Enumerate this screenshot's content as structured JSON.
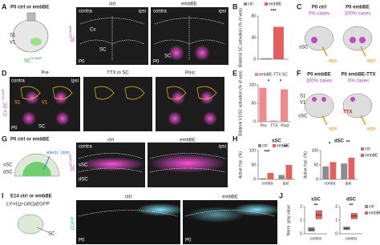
{
  "panels": {
    "a": {
      "letter": "A",
      "title": "P0 ctrl or embBE",
      "s1": "S1",
      "v1": "V1",
      "sc": "SC",
      "sc_sup": "GCaMP"
    },
    "a_img": {
      "side": "SC",
      "side_sup": "GCaMP",
      "ctrl": "ctrl",
      "embbe": "embBE",
      "contra": "contra",
      "ipsi": "ipsi",
      "contra2": "contra",
      "ipsi2": "ipsi",
      "cx": "Cx",
      "sc": "SC",
      "sc2": "SC",
      "p0": "P0",
      "p0_2": "P0"
    },
    "b": {
      "letter": "B"
    },
    "c": {
      "letter": "C",
      "left_title": "P0 ctrl",
      "left_cases": "0% cases",
      "right_title": "P0 embBE",
      "right_cases": "100% cases",
      "ssc": "sSC",
      "wps_left": "wps",
      "wps_right": "wps"
    },
    "d": {
      "letter": "D",
      "side": "Cx-SC",
      "side_sup": "GCaMP",
      "pre": "Pre",
      "ttx": "TTX in SC",
      "post": "Post",
      "contra": "contra",
      "ipsi": "ipsi",
      "s1": "S1",
      "v1": "V1",
      "sc": "SC",
      "p0": "P0"
    },
    "e": {
      "letter": "E"
    },
    "f": {
      "letter": "F",
      "left_title": "P0 embBE",
      "left_cases": "100% cases",
      "right_title": "P0 embBE-TTX",
      "right_cases": "0% cases",
      "s1": "S1",
      "v1": "V1",
      "ttx": "TTX",
      "ssc": "sSC",
      "wps_left": "wps",
      "wps_right": "wps"
    },
    "g": {
      "letter": "G",
      "title": "P0 ctrl or embBE",
      "ssc": "sSC",
      "dsc": "dSC",
      "stim": "electr. stim.",
      "side": "SC",
      "side_sup": "GCaMP",
      "ctrl": "ctrl",
      "embbe": "embBE",
      "contra": "contra",
      "ipsi": "ipsi",
      "img_ssc": "sSC",
      "img_dsc": "dSC"
    },
    "h": {
      "letter": "H"
    },
    "i": {
      "letter": "I",
      "title": "E14 ctrl or embBE",
      "vector": "LV-H1p-UbCpEGFP",
      "sc": "SC",
      "side": "EGFP",
      "ctrl": "ctrl",
      "embbe": "embBE",
      "p0": "P0",
      "p0_2": "P0"
    },
    "j": {
      "letter": "J"
    }
  },
  "chart_data": [
    {
      "type": "bar",
      "ylabel": "Bilateral SC activation (% of wps)",
      "categories": [
        null
      ],
      "series": [
        {
          "name": "ctrl",
          "color": "#8c8c8c",
          "values": [
            2
          ]
        },
        {
          "name": "embBE",
          "color": "#e3605e",
          "values": [
            60
          ]
        }
      ],
      "ylim": [
        0,
        80
      ],
      "yticks": [
        0,
        40,
        80
      ],
      "annotations": [
        "***"
      ]
    },
    {
      "type": "bar",
      "ylabel": "Bilateral V1/SC activation (% of wps)",
      "categories": [
        "Pre",
        "TTX",
        "Post"
      ],
      "series": [
        {
          "name": "embBE-TTX SC",
          "color": "#f08a8a",
          "values": [
            92,
            3,
            88
          ]
        }
      ],
      "ylim": [
        0,
        100
      ],
      "yticks": [
        0,
        50,
        100
      ],
      "annotations": [
        "*",
        "*"
      ]
    },
    {
      "type": "bar",
      "title": "sSC",
      "ylabel": "Active frac. (%)",
      "categories": [
        "contra",
        "ipsi"
      ],
      "series": [
        {
          "name": "ctrl",
          "color": "#8c8c8c",
          "values": [
            4,
            15
          ]
        },
        {
          "name": "embBE",
          "color": "#e3605e",
          "values": [
            22,
            50
          ]
        }
      ],
      "ylim": [
        0,
        100
      ],
      "yticks": [
        0,
        50,
        100
      ],
      "annotations": [
        "***",
        "**"
      ]
    },
    {
      "type": "bar",
      "title": "dSC",
      "ylabel": "Active frac. (%)",
      "categories": [
        "contra",
        "ipsi"
      ],
      "series": [
        {
          "name": "ctrl",
          "color": "#8c8c8c",
          "values": [
            45,
            55
          ]
        },
        {
          "name": "embBE",
          "color": "#e3605e",
          "values": [
            60,
            75
          ]
        }
      ],
      "ylim": [
        0,
        100
      ],
      "yticks": [
        0,
        50,
        100
      ],
      "annotations": [
        "*",
        "**"
      ]
    },
    {
      "type": "box",
      "ylabel": "Norm. gray value",
      "group_titles": [
        "sSC",
        "dSC"
      ],
      "categories": [
        "contra",
        "contra"
      ],
      "series": [
        {
          "name": "ctrl",
          "color": "#8c8c8c",
          "values": [
            0.3,
            0.4
          ],
          "q1": [
            0.2,
            0.3
          ],
          "q3": [
            0.45,
            0.5
          ]
        },
        {
          "name": "embBE",
          "color": "#e3605e",
          "values": [
            1.4,
            1.3
          ],
          "q1": [
            1.1,
            1.1
          ],
          "q3": [
            1.7,
            1.5
          ]
        }
      ],
      "ylim": [
        0,
        2
      ],
      "yticks": [
        0,
        1,
        2
      ],
      "annotations": [
        "**",
        "**"
      ]
    }
  ]
}
